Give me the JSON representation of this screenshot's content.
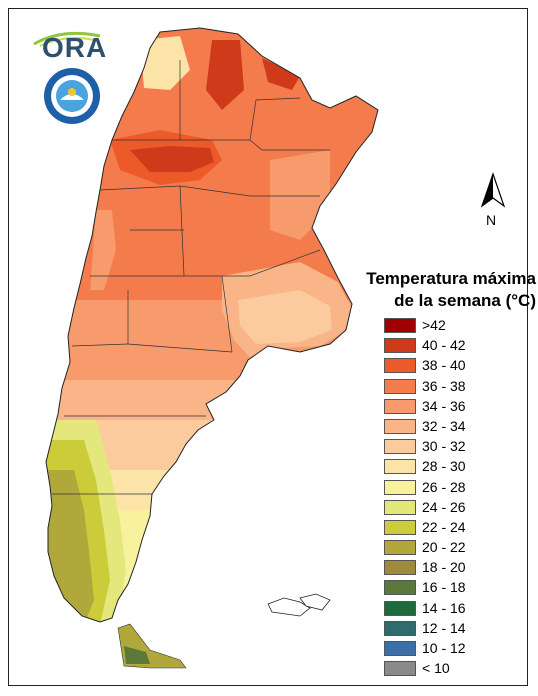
{
  "logo": {
    "text": "ORA",
    "seal_name": "servicio-meteorologico-nacional-seal"
  },
  "north_arrow": {
    "label": "N"
  },
  "legend": {
    "title_line1": "Temperatura máxima",
    "title_line2": "de la semana (°C)",
    "items": [
      {
        "label": ">42",
        "color": "#a00000"
      },
      {
        "label": "40 - 42",
        "color": "#cf3a1a"
      },
      {
        "label": "38 - 40",
        "color": "#ed5a2a"
      },
      {
        "label": "36 - 38",
        "color": "#f47b4c"
      },
      {
        "label": "34 - 36",
        "color": "#f79a6c"
      },
      {
        "label": "32 - 34",
        "color": "#f9b487"
      },
      {
        "label": "30 - 32",
        "color": "#fbcb9d"
      },
      {
        "label": "28 - 30",
        "color": "#fce4a8"
      },
      {
        "label": "26 - 28",
        "color": "#f8f29e"
      },
      {
        "label": "24 - 26",
        "color": "#e4e87c"
      },
      {
        "label": "22 - 24",
        "color": "#cccc3a"
      },
      {
        "label": "20 - 22",
        "color": "#b0a83a"
      },
      {
        "label": "18 - 20",
        "color": "#9d8a3c"
      },
      {
        "label": "16 - 18",
        "color": "#5b7a3a"
      },
      {
        "label": "14 - 16",
        "color": "#1c6b3a"
      },
      {
        "label": "12 - 14",
        "color": "#2f6b6f"
      },
      {
        "label": "10 - 12",
        "color": "#3b6fa8"
      },
      {
        "label": "< 10",
        "color": "#8a8a8a"
      }
    ]
  }
}
